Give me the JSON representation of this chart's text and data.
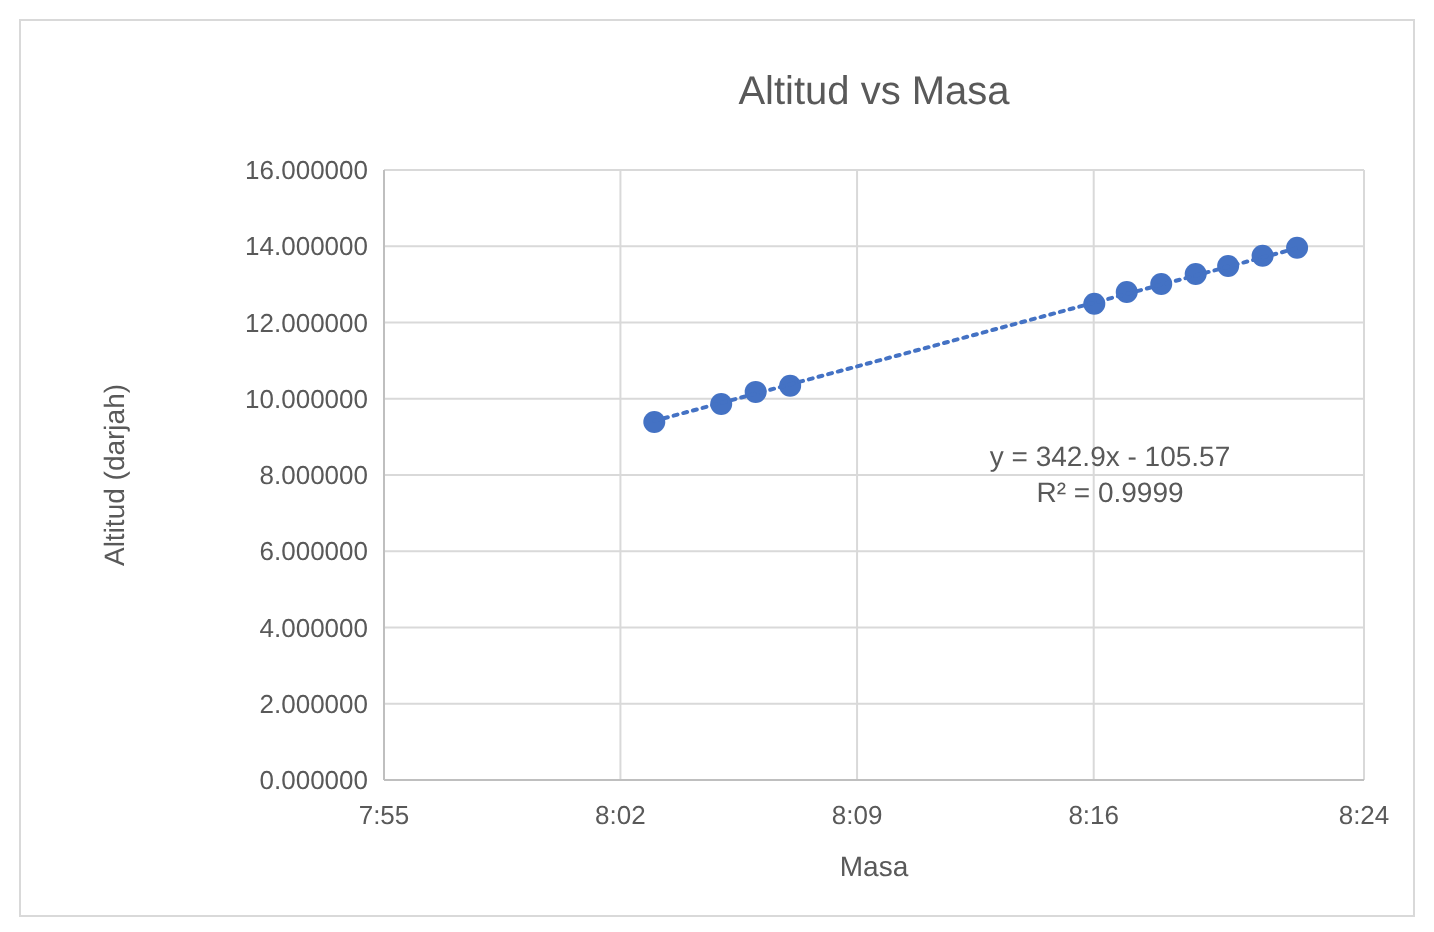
{
  "chart_data": {
    "type": "scatter",
    "title": "Altitud vs Masa",
    "xlabel": "Masa",
    "ylabel": "Altitud (darjah)",
    "xlim": [
      7.9167,
      8.4
    ],
    "xticks": [
      {
        "value": 7.9167,
        "label": "7:55"
      },
      {
        "value": 8.0333,
        "label": "8:02"
      },
      {
        "value": 8.15,
        "label": "8:09"
      },
      {
        "value": 8.2667,
        "label": "8:16"
      },
      {
        "value": 8.4,
        "label": "8:24"
      }
    ],
    "ylim": [
      0,
      16
    ],
    "yticks": [
      {
        "value": 0,
        "label": "0.000000"
      },
      {
        "value": 2,
        "label": "2.000000"
      },
      {
        "value": 4,
        "label": "4.000000"
      },
      {
        "value": 6,
        "label": "6.000000"
      },
      {
        "value": 8,
        "label": "8.000000"
      },
      {
        "value": 10,
        "label": "10.000000"
      },
      {
        "value": 12,
        "label": "12.000000"
      },
      {
        "value": 14,
        "label": "14.000000"
      },
      {
        "value": 16,
        "label": "16.000000"
      }
    ],
    "grid": true,
    "marker": "circle",
    "series": [
      {
        "type": "scatter",
        "color": "#4472c4",
        "x": [
          8.05,
          8.083,
          8.1,
          8.117,
          8.267,
          8.283,
          8.3,
          8.317,
          8.333,
          8.35,
          8.367
        ],
        "values": [
          9.39,
          9.86,
          10.18,
          10.34,
          12.49,
          12.8,
          13.01,
          13.27,
          13.48,
          13.75,
          13.96
        ]
      },
      {
        "type": "line",
        "color": "#4472c4",
        "line_style": "dotted",
        "marker": "none",
        "x": [
          8.05,
          8.367
        ],
        "values": [
          9.42,
          13.95
        ]
      }
    ],
    "annotations": [
      "y = 342.9x - 105.57",
      "R² = 0.9999"
    ]
  }
}
